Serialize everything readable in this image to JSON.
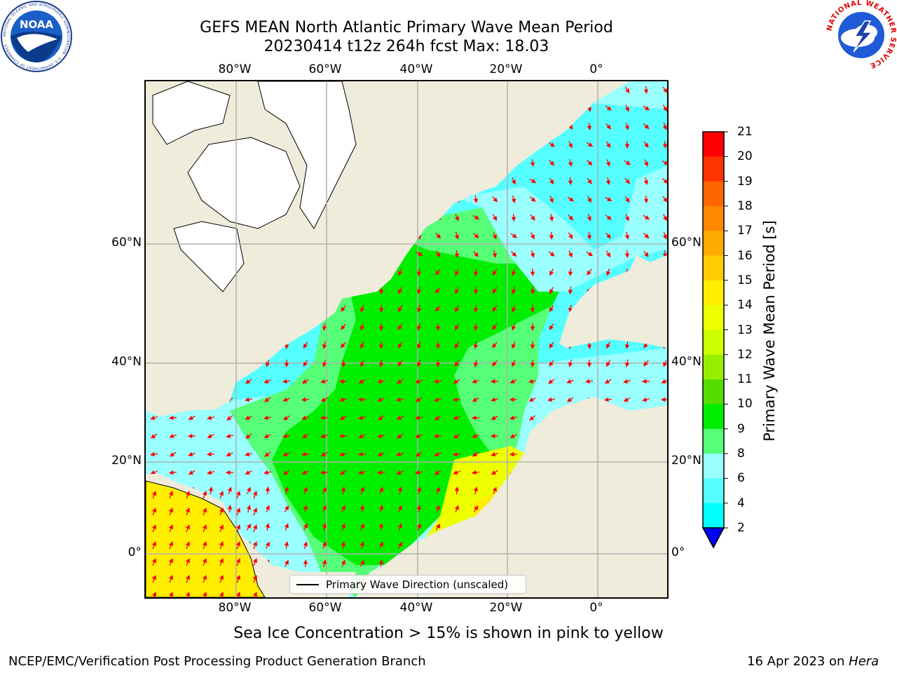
{
  "title": {
    "line1": "GEFS MEAN North Atlantic Primary Wave Mean Period",
    "line2": "20230414 t12z 264h fcst   Max: 18.03"
  },
  "map": {
    "lon_ticks": [
      "80°W",
      "60°W",
      "40°W",
      "20°W",
      "0°"
    ],
    "lat_ticks": [
      "60°N",
      "40°N",
      "20°N",
      "0°"
    ],
    "legend_label": "Primary Wave Direction (unscaled)",
    "colors": {
      "land": "#efecdc",
      "ice_white": "#ffffff",
      "wave_4_6": "#00ffff",
      "wave_6_8": "#55ffff",
      "wave_8_9": "#99ffff",
      "wave_9_10": "#55ff77",
      "wave_10_11": "#00ee00",
      "wave_14_15": "#eeff00",
      "wave_15_16": "#ffee00",
      "wave_16_17": "#ffbb00",
      "arrow": "#ff0000"
    }
  },
  "colorbar": {
    "title": "Primary Wave Mean Period [s]",
    "labels": [
      "21",
      "20",
      "19",
      "18",
      "17",
      "16",
      "15",
      "14",
      "13",
      "12",
      "11",
      "10",
      "9",
      "8",
      "6",
      "4",
      "2"
    ],
    "colors": [
      "#ff0000",
      "#ff3300",
      "#ff6600",
      "#ff8800",
      "#ffaa00",
      "#ffcc00",
      "#ffee00",
      "#eeff00",
      "#ccff00",
      "#99ee00",
      "#55dd00",
      "#00ee00",
      "#55ff77",
      "#99ffff",
      "#55ffff",
      "#00ffff",
      "#0088ff"
    ],
    "extend_color": "#0000ff"
  },
  "ice_note": "Sea Ice Concentration > 15% is shown in pink to yellow",
  "footer": {
    "left": "NCEP/EMC/Verification Post Processing Product Generation Branch",
    "right_prefix": "16 Apr 2023 on ",
    "right_host": "Hera"
  },
  "logos": {
    "noaa_text": "NOAA",
    "noaa_ring": "NATIONAL OCEANIC AND ATMOSPHERIC ADMINISTRATION · U.S. DEPARTMENT OF COMMERCE",
    "nws_ring": "NATIONAL WEATHER SERVICE"
  }
}
